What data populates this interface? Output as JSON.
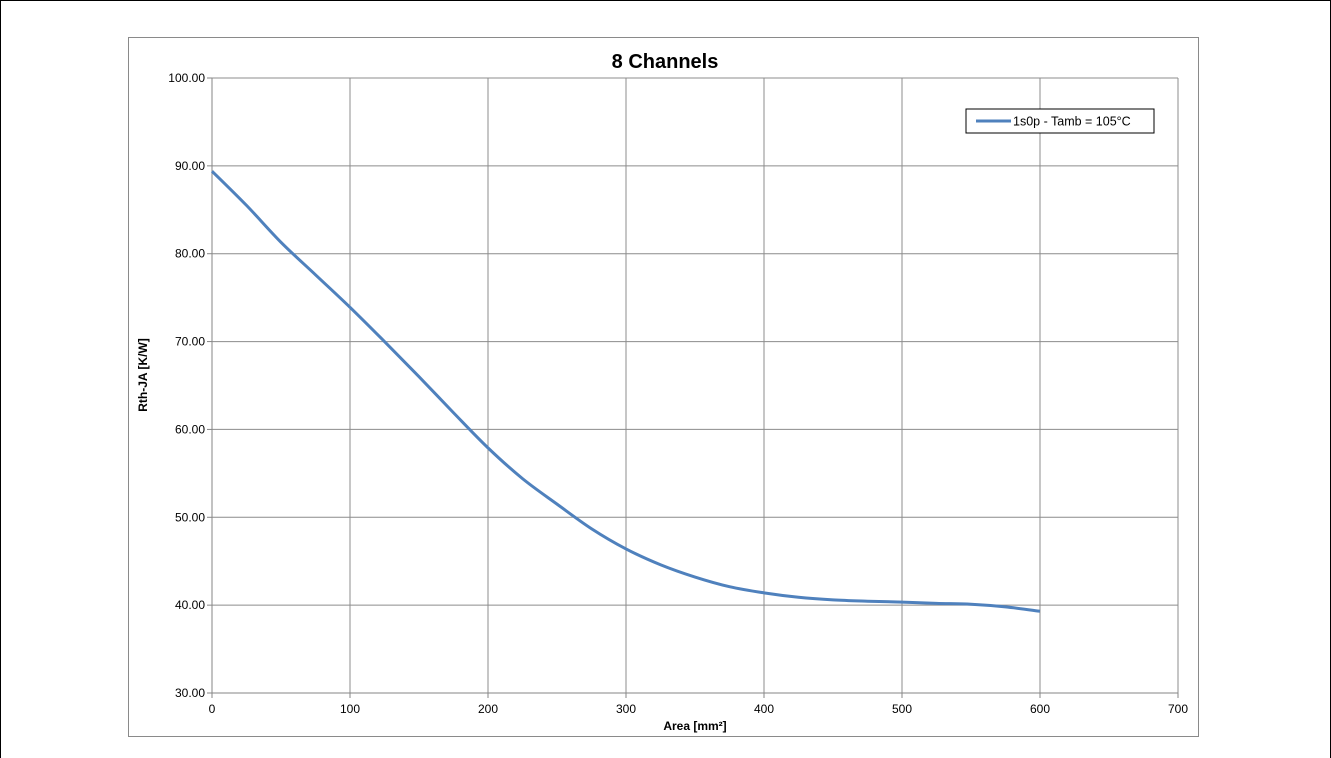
{
  "chart_data": {
    "type": "line",
    "title": "8 Channels",
    "xlabel": "Area [mm²]",
    "ylabel": "Rth-JA [K/W]",
    "xlim": [
      0,
      700
    ],
    "ylim": [
      30,
      100
    ],
    "x_ticks": [
      0,
      100,
      200,
      300,
      400,
      500,
      600,
      700
    ],
    "y_ticks": [
      "30.00",
      "40.00",
      "50.00",
      "60.00",
      "70.00",
      "80.00",
      "90.00",
      "100.00"
    ],
    "grid": true,
    "legend_position": "top-right",
    "series": [
      {
        "name": "1s0p - Tamb = 105°C",
        "color": "#4f81bd",
        "x": [
          0,
          25,
          50,
          75,
          100,
          125,
          150,
          175,
          200,
          225,
          250,
          275,
          300,
          325,
          350,
          375,
          400,
          425,
          450,
          475,
          500,
          525,
          550,
          575,
          600
        ],
        "y": [
          89.4,
          85.5,
          81.3,
          77.6,
          73.9,
          70.0,
          66.0,
          61.9,
          57.9,
          54.4,
          51.5,
          48.7,
          46.4,
          44.6,
          43.2,
          42.1,
          41.4,
          40.9,
          40.6,
          40.45,
          40.35,
          40.2,
          40.1,
          39.8,
          39.3
        ]
      }
    ]
  }
}
